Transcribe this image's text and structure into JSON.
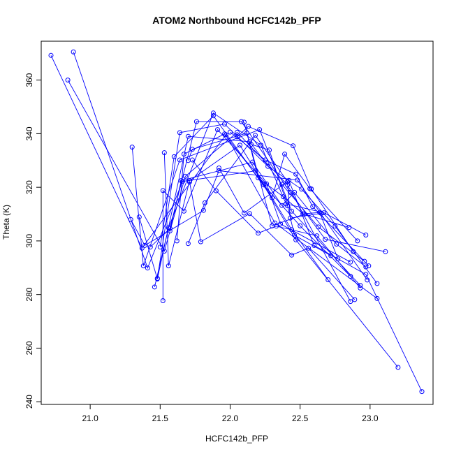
{
  "chart_data": {
    "type": "line",
    "title": "ATOM2 Northbound HCFC142b_PFP",
    "xlabel": "HCFC142b_PFP",
    "ylabel": "Theta (K)",
    "xlim": [
      20.65,
      23.45
    ],
    "ylim": [
      239.0,
      374.5
    ],
    "x_ticks": [
      21.0,
      21.5,
      22.0,
      22.5,
      23.0
    ],
    "x_tick_labels": [
      "21.0",
      "21.5",
      "22.0",
      "22.5",
      "23.0"
    ],
    "y_ticks": [
      240,
      260,
      280,
      300,
      320,
      340,
      360
    ],
    "y_tick_labels": [
      "240",
      "260",
      "280",
      "300",
      "320",
      "340",
      "360"
    ],
    "grid": false,
    "legend": "none",
    "color": "#0000ff",
    "marker": "open-circle",
    "series": [
      {
        "points": [
          [
            20.72,
            369.2
          ],
          [
            21.37,
            297.3
          ],
          [
            21.97,
            339.6
          ],
          [
            22.32,
            306.7
          ],
          [
            23.05,
            278.5
          ]
        ]
      },
      {
        "points": [
          [
            20.88,
            370.5
          ],
          [
            21.41,
            289.9
          ],
          [
            21.66,
            322.2
          ],
          [
            22.18,
            326.1
          ],
          [
            22.47,
            300.4
          ],
          [
            23.2,
            252.8
          ]
        ]
      },
      {
        "points": [
          [
            20.84,
            360.0
          ],
          [
            21.53,
            296.2
          ],
          [
            21.68,
            324.1
          ],
          [
            22.05,
            340.5
          ],
          [
            22.41,
            320.9
          ],
          [
            22.86,
            277.4
          ]
        ]
      },
      {
        "points": [
          [
            21.29,
            308.0
          ],
          [
            21.39,
            298.3
          ],
          [
            21.81,
            311.4
          ],
          [
            21.92,
            326.2
          ],
          [
            22.48,
            322.7
          ],
          [
            22.98,
            285.4
          ]
        ]
      },
      {
        "points": [
          [
            21.3,
            335.0
          ],
          [
            21.38,
            290.7
          ],
          [
            21.64,
            330.2
          ],
          [
            22.21,
            341.5
          ],
          [
            22.44,
            311.1
          ],
          [
            22.93,
            283.4
          ]
        ]
      },
      {
        "points": [
          [
            21.35,
            308.9
          ],
          [
            21.48,
            285.8
          ],
          [
            21.7,
            339.0
          ],
          [
            22.14,
            337.0
          ],
          [
            22.37,
            321.1
          ],
          [
            22.63,
            305.2
          ],
          [
            22.96,
            292.4
          ]
        ]
      },
      {
        "points": [
          [
            21.43,
            297.7
          ],
          [
            21.57,
            304.7
          ],
          [
            21.76,
            344.5
          ],
          [
            22.08,
            344.5
          ],
          [
            22.43,
            318.1
          ],
          [
            22.68,
            300.6
          ],
          [
            23.11,
            296.0
          ]
        ]
      },
      {
        "points": [
          [
            21.46,
            282.8
          ],
          [
            21.56,
            304.9
          ],
          [
            21.88,
            347.7
          ],
          [
            22.22,
            335.7
          ],
          [
            22.4,
            313.8
          ],
          [
            22.67,
            310.5
          ],
          [
            22.97,
            302.2
          ]
        ]
      },
      {
        "points": [
          [
            21.48,
            286.0
          ],
          [
            21.64,
            340.4
          ],
          [
            21.96,
            343.6
          ],
          [
            22.27,
            327.8
          ],
          [
            22.51,
            319.3
          ],
          [
            22.75,
            305.5
          ],
          [
            23.05,
            284.1
          ]
        ]
      },
      {
        "points": [
          [
            21.5,
            297.7
          ],
          [
            21.6,
            331.4
          ],
          [
            21.88,
            346.7
          ],
          [
            22.3,
            316.1
          ],
          [
            22.39,
            332.4
          ],
          [
            22.57,
            319.5
          ],
          [
            22.91,
            300.0
          ]
        ]
      },
      {
        "points": [
          [
            21.52,
            277.7
          ],
          [
            21.52,
            318.8
          ],
          [
            21.67,
            311.1
          ],
          [
            21.91,
            341.5
          ],
          [
            22.26,
            321.3
          ],
          [
            22.36,
            306.3
          ],
          [
            22.86,
            292.1
          ]
        ]
      },
      {
        "points": [
          [
            21.53,
            332.9
          ],
          [
            21.56,
            290.7
          ],
          [
            21.71,
            322.5
          ],
          [
            22.07,
            335.7
          ],
          [
            22.44,
            304.2
          ],
          [
            22.7,
            285.5
          ]
        ]
      },
      {
        "points": [
          [
            21.57,
            303.7
          ],
          [
            21.65,
            322.5
          ],
          [
            22.16,
            329.4
          ],
          [
            22.37,
            313.2
          ],
          [
            22.46,
            318.1
          ],
          [
            22.76,
            298.8
          ],
          [
            22.97,
            290.3
          ]
        ]
      },
      {
        "points": [
          [
            21.62,
            300.0
          ],
          [
            21.67,
            332.4
          ],
          [
            21.96,
            339.9
          ],
          [
            22.24,
            320.9
          ],
          [
            22.5,
            305.6
          ],
          [
            22.86,
            286.8
          ]
        ]
      },
      {
        "points": [
          [
            21.7,
            330.0
          ],
          [
            21.73,
            334.2
          ],
          [
            22.12,
            340.2
          ],
          [
            22.3,
            305.6
          ],
          [
            22.53,
            310.0
          ],
          [
            22.85,
            305.0
          ]
        ]
      },
      {
        "points": [
          [
            21.7,
            299.0
          ],
          [
            21.82,
            314.2
          ],
          [
            22.18,
            339.4
          ],
          [
            22.41,
            322.1
          ],
          [
            22.43,
            308.5
          ],
          [
            22.65,
            310.3
          ]
        ]
      },
      {
        "points": [
          [
            21.71,
            322.0
          ],
          [
            21.79,
            299.7
          ],
          [
            22.14,
            310.2
          ],
          [
            22.44,
            294.7
          ],
          [
            22.56,
            297.3
          ],
          [
            22.89,
            278.1
          ]
        ]
      },
      {
        "points": [
          [
            21.73,
            330.2
          ],
          [
            21.9,
            318.7
          ],
          [
            22.2,
            302.9
          ],
          [
            22.33,
            305.5
          ],
          [
            22.62,
            301.9
          ],
          [
            22.93,
            282.4
          ]
        ]
      },
      {
        "points": [
          [
            21.92,
            327.2
          ],
          [
            22.1,
            310.4
          ],
          [
            22.42,
            322.6
          ],
          [
            22.6,
            298.3
          ],
          [
            22.97,
            287.5
          ],
          [
            23.37,
            243.8
          ]
        ]
      },
      {
        "points": [
          [
            22.0,
            340.6
          ],
          [
            22.25,
            330.2
          ],
          [
            22.47,
            324.9
          ],
          [
            22.59,
            312.8
          ],
          [
            22.99,
            290.7
          ]
        ]
      },
      {
        "points": [
          [
            22.05,
            338.8
          ],
          [
            22.13,
            342.7
          ],
          [
            22.45,
            335.5
          ],
          [
            22.58,
            319.4
          ],
          [
            22.88,
            296.0
          ]
        ]
      },
      {
        "points": [
          [
            22.1,
            344.3
          ],
          [
            22.2,
            323.5
          ],
          [
            22.38,
            316.5
          ],
          [
            22.52,
            310.1
          ],
          [
            22.64,
            310.6
          ],
          [
            22.77,
            293.3
          ]
        ]
      },
      {
        "points": [
          [
            22.15,
            336.0
          ],
          [
            22.28,
            333.9
          ],
          [
            22.41,
            313.1
          ],
          [
            22.46,
            302.1
          ],
          [
            22.72,
            294.5
          ]
        ]
      }
    ]
  }
}
